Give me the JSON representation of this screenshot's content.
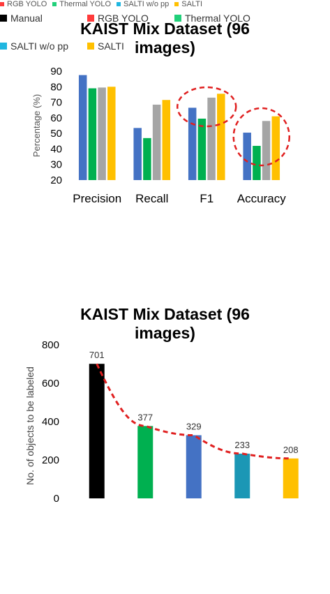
{
  "chart_data": [
    {
      "type": "bar",
      "title_lines": [
        "KAIST Mix Dataset (96",
        "images)"
      ],
      "ylabel": "Percentage (%)",
      "ylim": [
        20,
        90
      ],
      "yticks": [
        90,
        80,
        70,
        60,
        50,
        40,
        30,
        20
      ],
      "categories": [
        "Precision",
        "Recall",
        "F1",
        "Accuracy"
      ],
      "series": [
        {
          "color": "#4472C4",
          "values": [
            87.5,
            53.5,
            66.5,
            50.5
          ]
        },
        {
          "color": "#00B050",
          "values": [
            79,
            47,
            59.5,
            42
          ]
        },
        {
          "color": "#A5A5A5",
          "values": [
            79.5,
            68.5,
            73,
            58
          ]
        },
        {
          "color": "#FFC000",
          "values": [
            80,
            71.5,
            75.5,
            61
          ]
        }
      ],
      "legend": [
        {
          "name": "RGB YOLO",
          "color": "#FF3B3B"
        },
        {
          "name": "Thermal YOLO",
          "color": "#21D07A"
        },
        {
          "name": "SALTI w/o pp",
          "color": "#1FB6E0"
        },
        {
          "name": "SALTI",
          "color": "#FFC000"
        }
      ],
      "annotations": [
        {
          "type": "dashed-ellipse",
          "color": "#E02020",
          "around": "F1"
        },
        {
          "type": "dashed-ellipse",
          "color": "#E02020",
          "around": "Accuracy"
        }
      ],
      "grid": false
    },
    {
      "type": "bar",
      "title_lines": [
        "KAIST Mix Dataset (96",
        "images)"
      ],
      "ylabel": "No. of objects to be labeled",
      "ylim": [
        0,
        800
      ],
      "yticks": [
        800,
        600,
        400,
        200,
        0
      ],
      "bars": [
        {
          "value": 701,
          "label": "701",
          "color": "#000000"
        },
        {
          "value": 377,
          "label": "377",
          "color": "#00B050"
        },
        {
          "value": 329,
          "label": "329",
          "color": "#4472C4"
        },
        {
          "value": 233,
          "label": "233",
          "color": "#1B97B5"
        },
        {
          "value": 208,
          "label": "208",
          "color": "#FFC000"
        }
      ],
      "trend": {
        "type": "dashed-curve",
        "color": "#E02020"
      },
      "legend": [
        {
          "name": "Manual",
          "color": "#000000"
        },
        {
          "name": "RGB YOLO",
          "color": "#FF3B3B"
        },
        {
          "name": "Thermal YOLO",
          "color": "#21D07A"
        },
        {
          "name": "SALTI w/o pp",
          "color": "#1FB6E0"
        },
        {
          "name": "SALTI",
          "color": "#FFC000"
        }
      ],
      "grid": false
    }
  ]
}
